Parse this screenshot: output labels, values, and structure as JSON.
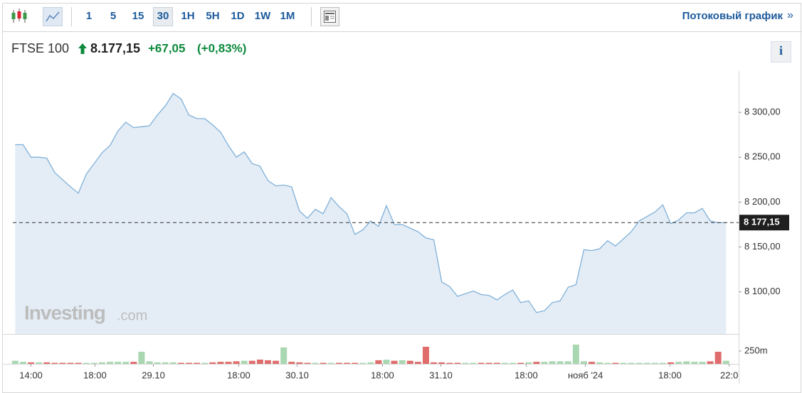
{
  "toolbar": {
    "intervals": [
      "1",
      "5",
      "15",
      "30",
      "1H",
      "5H",
      "1D",
      "1W",
      "1M"
    ],
    "active": 3,
    "link": "Потоковый график",
    "link_arrow": "»"
  },
  "header": {
    "name": "FTSE 100",
    "price": "8.177,15",
    "change": "+67,05",
    "change_percent": "(+0,83%)",
    "info": "i"
  },
  "watermark": {
    "brand": "Investing",
    "suffix": ".com"
  },
  "chart_data": {
    "type": "area",
    "x": [
      0,
      1,
      2,
      3,
      4,
      5,
      6,
      7,
      8,
      9,
      10,
      11,
      12,
      13,
      14,
      15,
      16,
      17,
      18,
      19,
      20,
      21,
      22,
      23,
      24,
      25,
      26,
      27,
      28,
      29,
      30,
      31,
      32,
      33,
      34,
      35,
      36,
      37,
      38,
      39,
      40,
      41,
      42,
      43,
      44,
      45,
      46,
      47,
      48,
      49,
      50,
      51,
      52,
      53,
      54,
      55,
      56,
      57,
      58,
      59,
      60,
      61,
      62,
      63,
      64,
      65,
      66,
      67,
      68,
      69,
      70,
      71,
      72,
      73,
      74,
      75,
      76,
      77,
      78,
      79,
      80,
      81,
      82,
      83,
      84,
      85,
      86,
      87,
      88,
      89,
      90
    ],
    "values": [
      8264,
      8264,
      8250,
      8250,
      8249,
      8233,
      8225,
      8217,
      8210,
      8231,
      8243,
      8255,
      8263,
      8279,
      8289,
      8283,
      8284,
      8285,
      8297,
      8307,
      8321,
      8315,
      8297,
      8293,
      8293,
      8286,
      8278,
      8263,
      8250,
      8256,
      8243,
      8240,
      8224,
      8218,
      8219,
      8217,
      8190,
      8182,
      8192,
      8187,
      8205,
      8195,
      8187,
      8164,
      8169,
      8179,
      8173,
      8196,
      8175,
      8175,
      8171,
      8167,
      8160,
      8158,
      8111,
      8106,
      8095,
      8098,
      8101,
      8097,
      8096,
      8091,
      8097,
      8102,
      8088,
      8090,
      8077,
      8079,
      8088,
      8090,
      8105,
      8108,
      8147,
      8146,
      8148,
      8157,
      8151,
      8159,
      8167,
      8179,
      8184,
      8189,
      8197,
      8176,
      8180,
      8188,
      8188,
      8193,
      8179,
      8177,
      8177
    ],
    "color": "#7fb0d8",
    "fill": "#e4edf6",
    "xlim": [
      -0.3,
      91.6
    ],
    "xticks": [
      {
        "value": 2,
        "label": "14:00"
      },
      {
        "value": 10.1,
        "label": "18:00"
      },
      {
        "value": 17.5,
        "label": "29.10"
      },
      {
        "value": 28.3,
        "label": "18:00"
      },
      {
        "value": 35.7,
        "label": "30.10"
      },
      {
        "value": 46.5,
        "label": "18:00"
      },
      {
        "value": 53.9,
        "label": "31.10"
      },
      {
        "value": 64.7,
        "label": "18:00"
      },
      {
        "value": 72.2,
        "label": "нояб '24"
      },
      {
        "value": 82.9,
        "label": "18:00"
      },
      {
        "value": 90.4,
        "label": "22:0"
      }
    ],
    "ylim": [
      8053,
      8346
    ],
    "yticks": [
      {
        "value": 8100,
        "label": "8 100,00"
      },
      {
        "value": 8150,
        "label": "8 150,00"
      },
      {
        "value": 8200,
        "label": "8 200,00"
      },
      {
        "value": 8250,
        "label": "8 250,00"
      },
      {
        "value": 8300,
        "label": "8 300,00"
      }
    ],
    "grid": false,
    "last": {
      "value": 8177.15,
      "label": "8 177,15"
    },
    "volume": {
      "values": [
        60,
        40,
        30,
        30,
        30,
        20,
        20,
        20,
        20,
        20,
        20,
        30,
        40,
        40,
        40,
        40,
        236,
        50,
        30,
        30,
        30,
        20,
        20,
        20,
        20,
        30,
        40,
        40,
        50,
        60,
        60,
        83,
        70,
        60,
        320,
        40,
        30,
        20,
        20,
        20,
        20,
        20,
        20,
        20,
        20,
        30,
        70,
        80,
        60,
        70,
        60,
        40,
        333,
        30,
        30,
        20,
        20,
        20,
        20,
        20,
        20,
        20,
        20,
        20,
        20,
        30,
        40,
        40,
        50,
        50,
        50,
        375,
        50,
        40,
        30,
        20,
        20,
        20,
        20,
        20,
        20,
        20,
        20,
        30,
        40,
        50,
        40,
        40,
        50,
        236,
        60
      ],
      "ylim": [
        0,
        470
      ],
      "yticks": [
        {
          "value": 250,
          "label": "250m"
        }
      ],
      "up_color": "#a9d7b1",
      "down_color": "#e06c6c"
    }
  }
}
